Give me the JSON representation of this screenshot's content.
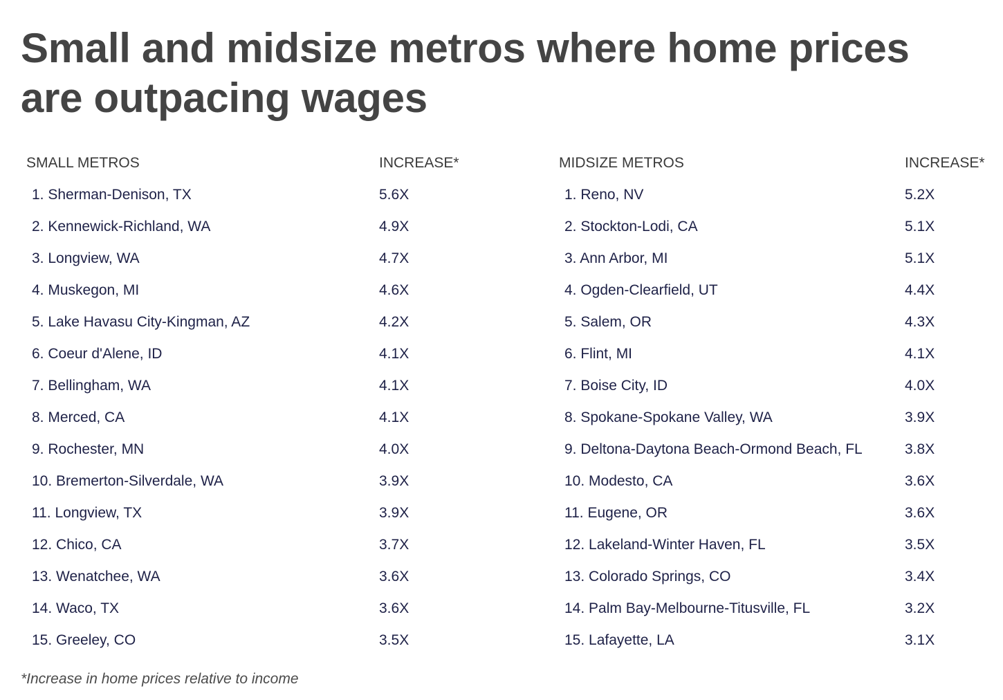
{
  "title": "Small and midsize metros where home prices are outpacing wages",
  "small": {
    "header": "SMALL METROS",
    "value_header": "INCREASE*",
    "rows": [
      {
        "metro": "1. Sherman-Denison, TX",
        "value": "5.6X"
      },
      {
        "metro": "2. Kennewick-Richland, WA",
        "value": "4.9X"
      },
      {
        "metro": "3. Longview, WA",
        "value": "4.7X"
      },
      {
        "metro": "4. Muskegon, MI",
        "value": "4.6X"
      },
      {
        "metro": "5. Lake Havasu City-Kingman, AZ",
        "value": "4.2X"
      },
      {
        "metro": "6. Coeur d'Alene, ID",
        "value": "4.1X"
      },
      {
        "metro": "7. Bellingham, WA",
        "value": "4.1X"
      },
      {
        "metro": "8. Merced, CA",
        "value": "4.1X"
      },
      {
        "metro": "9. Rochester, MN",
        "value": "4.0X"
      },
      {
        "metro": "10. Bremerton-Silverdale, WA",
        "value": "3.9X"
      },
      {
        "metro": "11. Longview, TX",
        "value": "3.9X"
      },
      {
        "metro": "12. Chico, CA",
        "value": "3.7X"
      },
      {
        "metro": "13. Wenatchee, WA",
        "value": "3.6X"
      },
      {
        "metro": "14. Waco, TX",
        "value": "3.6X"
      },
      {
        "metro": "15. Greeley, CO",
        "value": "3.5X"
      }
    ]
  },
  "midsize": {
    "header": "MIDSIZE METROS",
    "value_header": "INCREASE*",
    "rows": [
      {
        "metro": "1. Reno, NV",
        "value": "5.2X"
      },
      {
        "metro": "2. Stockton-Lodi, CA",
        "value": "5.1X"
      },
      {
        "metro": "3. Ann Arbor, MI",
        "value": "5.1X"
      },
      {
        "metro": "4. Ogden-Clearfield, UT",
        "value": "4.4X"
      },
      {
        "metro": "5. Salem, OR",
        "value": "4.3X"
      },
      {
        "metro": "6. Flint, MI",
        "value": "4.1X"
      },
      {
        "metro": "7. Boise City, ID",
        "value": "4.0X"
      },
      {
        "metro": "8. Spokane-Spokane Valley, WA",
        "value": "3.9X"
      },
      {
        "metro": "9. Deltona-Daytona Beach-Ormond Beach, FL",
        "value": "3.8X"
      },
      {
        "metro": "10. Modesto, CA",
        "value": "3.6X"
      },
      {
        "metro": "11. Eugene, OR",
        "value": "3.6X"
      },
      {
        "metro": "12. Lakeland-Winter Haven, FL",
        "value": "3.5X"
      },
      {
        "metro": "13. Colorado Springs, CO",
        "value": "3.4X"
      },
      {
        "metro": "14. Palm Bay-Melbourne-Titusville, FL",
        "value": "3.2X"
      },
      {
        "metro": "15. Lafayette, LA",
        "value": "3.1X"
      }
    ]
  },
  "footnote": "*Increase in home prices relative to income"
}
